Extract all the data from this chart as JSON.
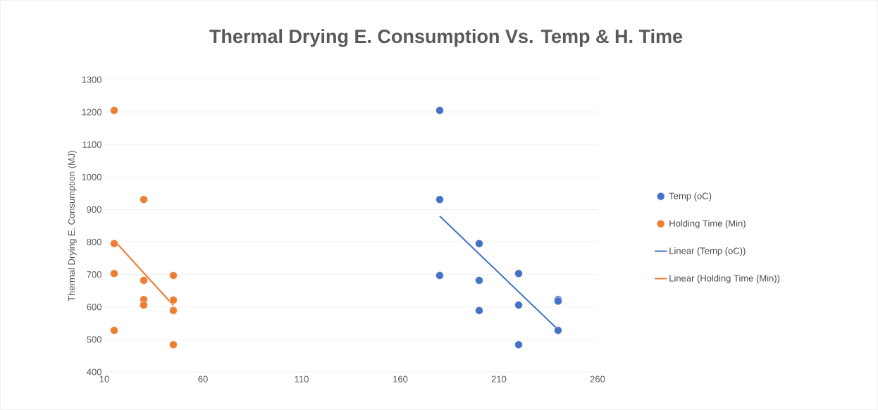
{
  "chart_data": {
    "type": "scatter",
    "title": "Thermal Drying E. Consumption Vs. Temp & H. Time",
    "ylabel": "Thermal Drying E. Consumption (MJ)",
    "xlim": [
      10,
      260
    ],
    "xticks": [
      10,
      60,
      110,
      160,
      210,
      260
    ],
    "ylim": [
      400,
      1300
    ],
    "yticks": [
      400,
      500,
      600,
      700,
      800,
      900,
      1000,
      1100,
      1200,
      1300
    ],
    "grid": "y",
    "legend": "right",
    "marker": "circle",
    "series": [
      {
        "name": "Temp (oC)",
        "type": "scatter",
        "color": "#4472c4",
        "x": [
          180,
          180,
          180,
          200,
          200,
          200,
          220,
          220,
          220,
          240,
          240,
          240
        ],
        "values": [
          1205,
          931,
          697,
          795,
          682,
          589,
          703,
          606,
          484,
          623,
          618,
          528
        ]
      },
      {
        "name": "Holding Time (Min)",
        "type": "scatter",
        "color": "#ed7d31",
        "x": [
          15,
          15,
          15,
          15,
          30,
          30,
          30,
          30,
          45,
          45,
          45,
          45
        ],
        "values": [
          1205,
          795,
          703,
          528,
          931,
          682,
          623,
          606,
          697,
          621,
          589,
          484
        ]
      },
      {
        "name": "Linear (Temp (oC))",
        "type": "line",
        "marker": "none",
        "color": "#4472c4",
        "x": [
          180,
          240
        ],
        "values": [
          880,
          530
        ]
      },
      {
        "name": "Linear (Holding Time (Min))",
        "type": "line",
        "marker": "none",
        "color": "#ed7d31",
        "x": [
          15,
          45
        ],
        "values": [
          805,
          605
        ]
      }
    ]
  }
}
